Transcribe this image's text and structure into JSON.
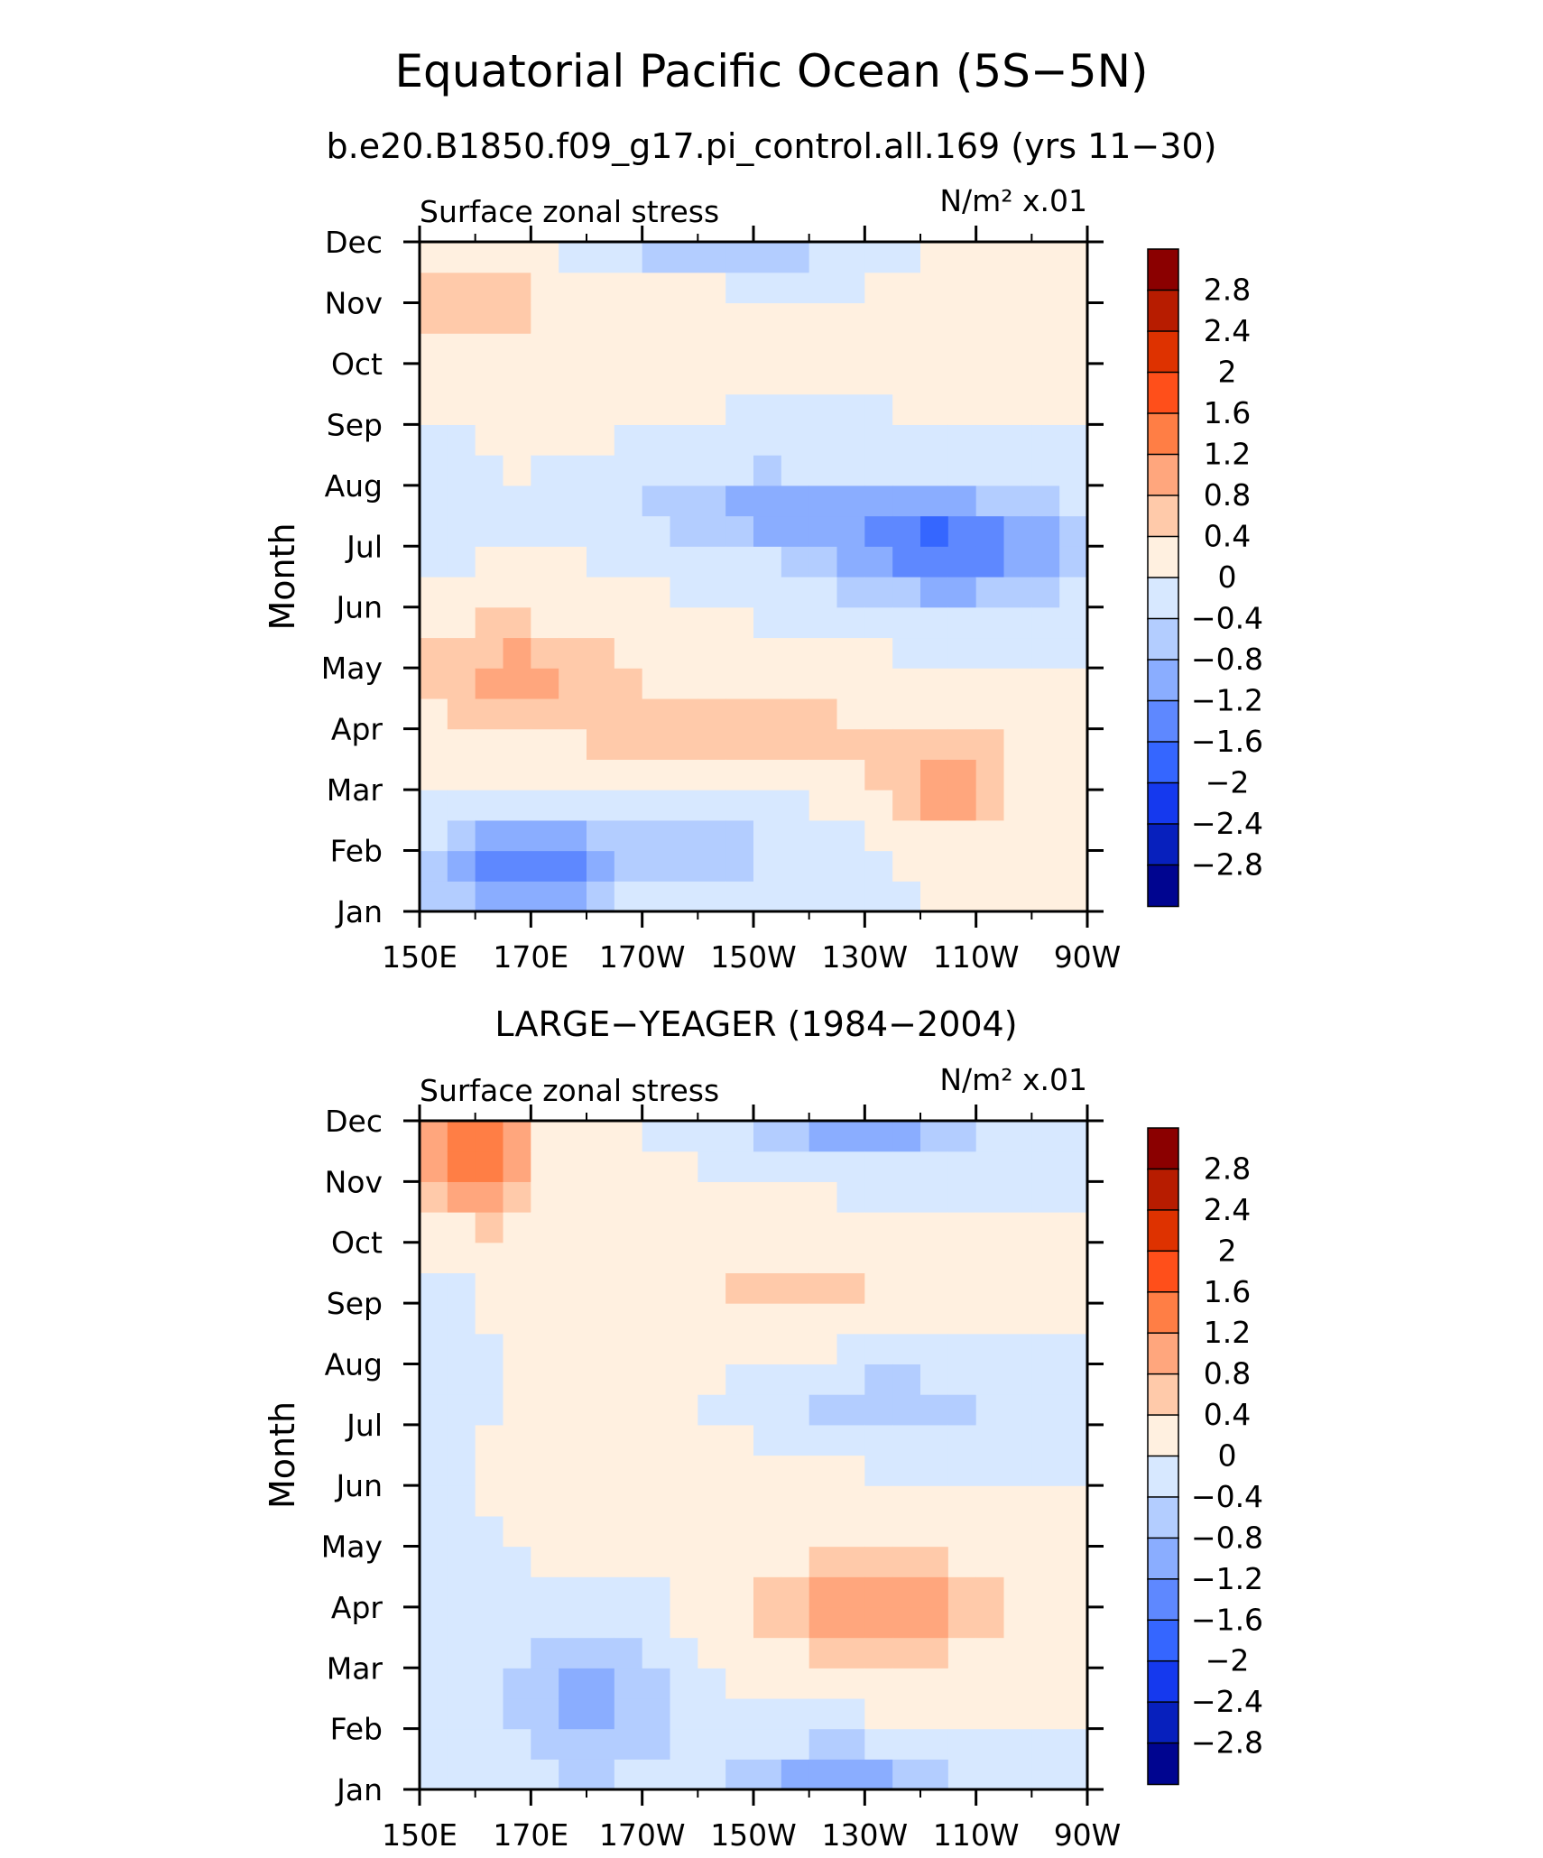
{
  "figure": {
    "title": "Equatorial Pacific Ocean (5S−5N)",
    "subtitle": "b.e20.B1850.f09_g17.pi_control.all.169 (yrs 11−30)",
    "panel2_title": "LARGE−YEAGER (1984−2004)"
  },
  "colorbar": {
    "labels": [
      "2.8",
      "2.4",
      "2",
      "1.6",
      "1.2",
      "0.8",
      "0.4",
      "0",
      "−0.4",
      "−0.8",
      "−1.2",
      "−1.6",
      "−2",
      "−2.4",
      "−2.8"
    ],
    "colors": [
      "#8b0000",
      "#b71c00",
      "#de3200",
      "#ff4f1a",
      "#ff7e45",
      "#ffa67d",
      "#ffcaaa",
      "#fff0e0",
      "#d7e8ff",
      "#b3cdff",
      "#8aadff",
      "#5e88ff",
      "#3566ff",
      "#1539ee",
      "#0720bd",
      "#000590"
    ]
  },
  "chart_data": [
    {
      "type": "heatmap",
      "title": "b.e20.B1850.f09_g17.pi_control.all.169 (yrs 11−30)",
      "left_label": "Surface zonal stress",
      "units": "N/m² x.01",
      "ylabel": "Month",
      "x_ticks": [
        "150E",
        "170E",
        "170W",
        "150W",
        "130W",
        "110W",
        "90W"
      ],
      "x_values": [
        150,
        170,
        190,
        210,
        230,
        250,
        270
      ],
      "xlim": [
        150,
        270
      ],
      "y_ticks": [
        "Jan",
        "Feb",
        "Mar",
        "Apr",
        "May",
        "Jun",
        "Jul",
        "Aug",
        "Sep",
        "Oct",
        "Nov",
        "Dec"
      ],
      "ylim": [
        1,
        12
      ],
      "levels": [
        -2.8,
        -2.4,
        -2,
        -1.6,
        -1.2,
        -0.8,
        -0.4,
        0,
        0.4,
        0.8,
        1.2,
        1.6,
        2,
        2.4,
        2.8
      ],
      "features": [
        {
          "x": 255,
          "y": 10.9,
          "sx": 14,
          "sy": 1.0,
          "value": 0.3
        },
        {
          "x": 162,
          "y": 11.0,
          "sx": 24,
          "sy": 1.4,
          "value": 0.5
        },
        {
          "x": 200,
          "y": 12.0,
          "sx": 28,
          "sy": 0.4,
          "value": -0.9
        },
        {
          "x": 245,
          "y": 7.0,
          "sx": 22,
          "sy": 0.9,
          "value": -1.7
        },
        {
          "x": 210,
          "y": 7.6,
          "sx": 20,
          "sy": 0.7,
          "value": -0.9
        },
        {
          "x": 166,
          "y": 4.9,
          "sx": 20,
          "sy": 1.0,
          "value": 0.9
        },
        {
          "x": 207,
          "y": 4.0,
          "sx": 30,
          "sy": 0.9,
          "value": 0.6
        },
        {
          "x": 245,
          "y": 3.1,
          "sx": 12,
          "sy": 0.8,
          "value": 1.0
        },
        {
          "x": 168,
          "y": 1.7,
          "sx": 16,
          "sy": 0.8,
          "value": -1.5
        },
        {
          "x": 200,
          "y": 2.0,
          "sx": 22,
          "sy": 0.7,
          "value": -0.6
        },
        {
          "x": 153,
          "y": 8.1,
          "sx": 6,
          "sy": 1.0,
          "value": -0.3
        }
      ]
    },
    {
      "type": "heatmap",
      "title": "LARGE−YEAGER (1984−2004)",
      "left_label": "Surface zonal stress",
      "units": "N/m² x.01",
      "ylabel": "Month",
      "x_ticks": [
        "150E",
        "170E",
        "170W",
        "150W",
        "130W",
        "110W",
        "90W"
      ],
      "x_values": [
        150,
        170,
        190,
        210,
        230,
        250,
        270
      ],
      "xlim": [
        150,
        270
      ],
      "y_ticks": [
        "Jan",
        "Feb",
        "Mar",
        "Apr",
        "May",
        "Jun",
        "Jul",
        "Aug",
        "Sep",
        "Oct",
        "Nov",
        "Dec"
      ],
      "ylim": [
        1,
        12
      ],
      "levels": [
        -2.8,
        -2.4,
        -2,
        -1.6,
        -1.2,
        -0.8,
        -0.4,
        0,
        0.4,
        0.8,
        1.2,
        1.6,
        2,
        2.4,
        2.8
      ],
      "features": [
        {
          "x": 160,
          "y": 11.7,
          "sx": 10,
          "sy": 1.2,
          "value": 1.6
        },
        {
          "x": 180,
          "y": 8.0,
          "sx": 30,
          "sy": 3.0,
          "value": 0.25
        },
        {
          "x": 228,
          "y": 11.8,
          "sx": 22,
          "sy": 0.5,
          "value": -1.0
        },
        {
          "x": 220,
          "y": 9.2,
          "sx": 22,
          "sy": 0.6,
          "value": 0.5
        },
        {
          "x": 155,
          "y": 7.8,
          "sx": 8,
          "sy": 1.5,
          "value": -0.5
        },
        {
          "x": 235,
          "y": 7.4,
          "sx": 28,
          "sy": 0.6,
          "value": -0.6
        },
        {
          "x": 232,
          "y": 4.0,
          "sx": 22,
          "sy": 0.9,
          "value": 1.1
        },
        {
          "x": 180,
          "y": 2.4,
          "sx": 16,
          "sy": 1.4,
          "value": -0.9
        },
        {
          "x": 225,
          "y": 1.3,
          "sx": 20,
          "sy": 0.5,
          "value": -1.0
        },
        {
          "x": 158,
          "y": 4.0,
          "sx": 8,
          "sy": 1.5,
          "value": -0.3
        }
      ]
    }
  ]
}
